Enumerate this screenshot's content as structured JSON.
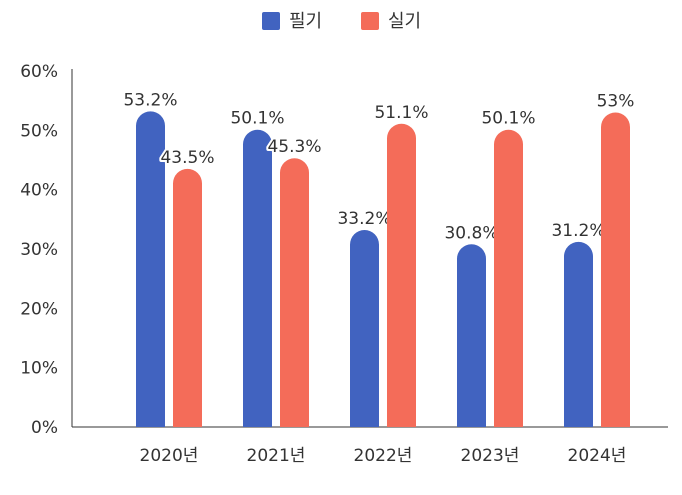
{
  "chart_data": {
    "type": "bar",
    "categories": [
      "2020년",
      "2021년",
      "2022년",
      "2023년",
      "2024년"
    ],
    "series": [
      {
        "name": "필기",
        "color": "#4163c0",
        "values": [
          53.2,
          50.1,
          33.2,
          30.8,
          31.2
        ],
        "labels": [
          "53.2%",
          "50.1%",
          "33.2%",
          "30.8%",
          "31.2%"
        ]
      },
      {
        "name": "실기",
        "color": "#f46c59",
        "values": [
          43.5,
          45.3,
          51.1,
          50.1,
          53.0
        ],
        "labels": [
          "43.5%",
          "45.3%",
          "51.1%",
          "50.1%",
          "53%"
        ]
      }
    ],
    "yticks": [
      "0%",
      "10%",
      "20%",
      "30%",
      "40%",
      "50%",
      "60%"
    ],
    "ylim": [
      0,
      60
    ],
    "grid": false,
    "legend_position": "top-center",
    "title": "",
    "xlabel": "",
    "ylabel": ""
  }
}
